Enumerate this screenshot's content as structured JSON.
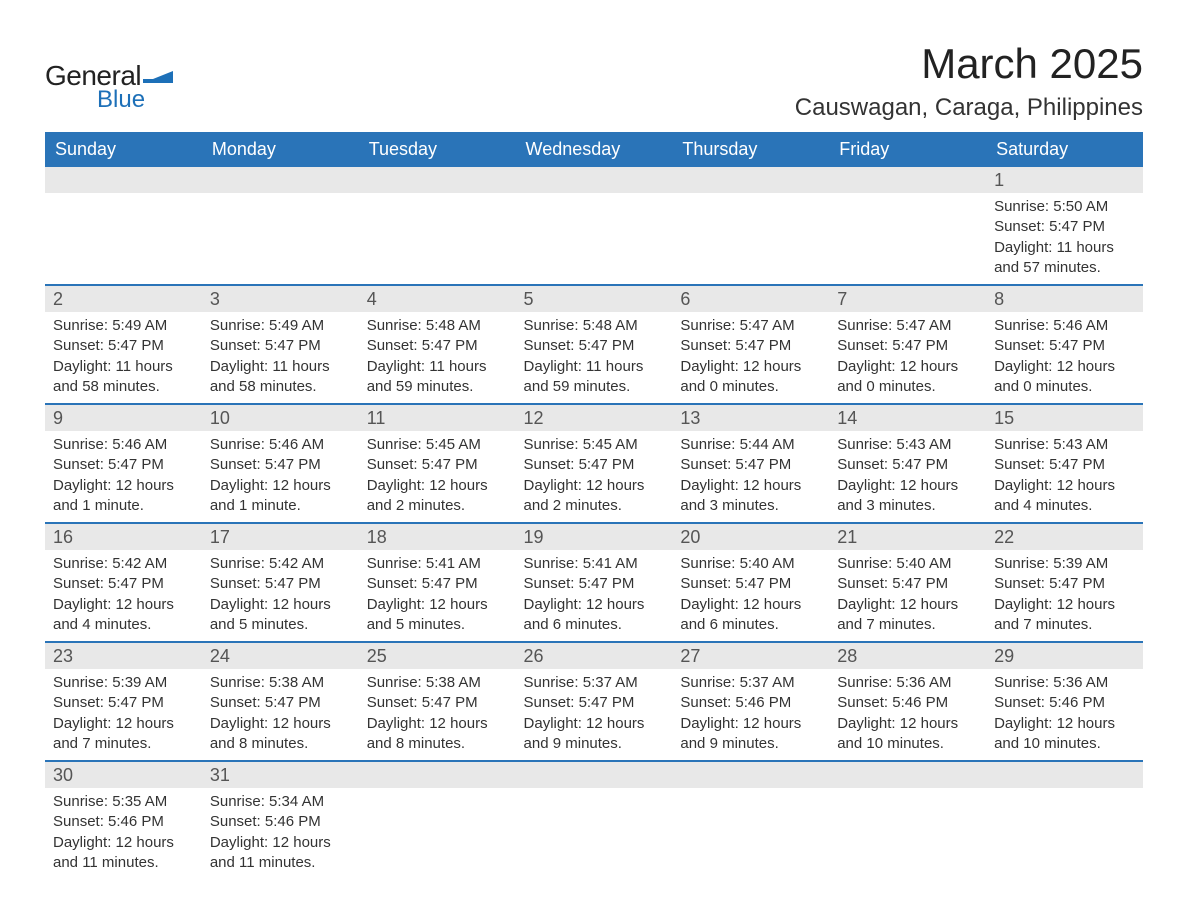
{
  "brand": {
    "name1": "General",
    "name2": "Blue",
    "accent": "#1d70b8"
  },
  "title": "March 2025",
  "location": "Causwagan, Caraga, Philippines",
  "colors": {
    "header_bg": "#2a74b8",
    "header_text": "#ffffff",
    "daynum_bg": "#e8e8e8",
    "row_divider": "#2a74b8",
    "body_text": "#333333"
  },
  "fonts": {
    "title_size_pt": 32,
    "location_size_pt": 18,
    "weekday_size_pt": 14,
    "daynum_size_pt": 14,
    "body_size_pt": 11
  },
  "weekdays": [
    "Sunday",
    "Monday",
    "Tuesday",
    "Wednesday",
    "Thursday",
    "Friday",
    "Saturday"
  ],
  "weeks": [
    [
      null,
      null,
      null,
      null,
      null,
      null,
      {
        "n": "1",
        "sunrise": "Sunrise: 5:50 AM",
        "sunset": "Sunset: 5:47 PM",
        "daylight": "Daylight: 11 hours and 57 minutes."
      }
    ],
    [
      {
        "n": "2",
        "sunrise": "Sunrise: 5:49 AM",
        "sunset": "Sunset: 5:47 PM",
        "daylight": "Daylight: 11 hours and 58 minutes."
      },
      {
        "n": "3",
        "sunrise": "Sunrise: 5:49 AM",
        "sunset": "Sunset: 5:47 PM",
        "daylight": "Daylight: 11 hours and 58 minutes."
      },
      {
        "n": "4",
        "sunrise": "Sunrise: 5:48 AM",
        "sunset": "Sunset: 5:47 PM",
        "daylight": "Daylight: 11 hours and 59 minutes."
      },
      {
        "n": "5",
        "sunrise": "Sunrise: 5:48 AM",
        "sunset": "Sunset: 5:47 PM",
        "daylight": "Daylight: 11 hours and 59 minutes."
      },
      {
        "n": "6",
        "sunrise": "Sunrise: 5:47 AM",
        "sunset": "Sunset: 5:47 PM",
        "daylight": "Daylight: 12 hours and 0 minutes."
      },
      {
        "n": "7",
        "sunrise": "Sunrise: 5:47 AM",
        "sunset": "Sunset: 5:47 PM",
        "daylight": "Daylight: 12 hours and 0 minutes."
      },
      {
        "n": "8",
        "sunrise": "Sunrise: 5:46 AM",
        "sunset": "Sunset: 5:47 PM",
        "daylight": "Daylight: 12 hours and 0 minutes."
      }
    ],
    [
      {
        "n": "9",
        "sunrise": "Sunrise: 5:46 AM",
        "sunset": "Sunset: 5:47 PM",
        "daylight": "Daylight: 12 hours and 1 minute."
      },
      {
        "n": "10",
        "sunrise": "Sunrise: 5:46 AM",
        "sunset": "Sunset: 5:47 PM",
        "daylight": "Daylight: 12 hours and 1 minute."
      },
      {
        "n": "11",
        "sunrise": "Sunrise: 5:45 AM",
        "sunset": "Sunset: 5:47 PM",
        "daylight": "Daylight: 12 hours and 2 minutes."
      },
      {
        "n": "12",
        "sunrise": "Sunrise: 5:45 AM",
        "sunset": "Sunset: 5:47 PM",
        "daylight": "Daylight: 12 hours and 2 minutes."
      },
      {
        "n": "13",
        "sunrise": "Sunrise: 5:44 AM",
        "sunset": "Sunset: 5:47 PM",
        "daylight": "Daylight: 12 hours and 3 minutes."
      },
      {
        "n": "14",
        "sunrise": "Sunrise: 5:43 AM",
        "sunset": "Sunset: 5:47 PM",
        "daylight": "Daylight: 12 hours and 3 minutes."
      },
      {
        "n": "15",
        "sunrise": "Sunrise: 5:43 AM",
        "sunset": "Sunset: 5:47 PM",
        "daylight": "Daylight: 12 hours and 4 minutes."
      }
    ],
    [
      {
        "n": "16",
        "sunrise": "Sunrise: 5:42 AM",
        "sunset": "Sunset: 5:47 PM",
        "daylight": "Daylight: 12 hours and 4 minutes."
      },
      {
        "n": "17",
        "sunrise": "Sunrise: 5:42 AM",
        "sunset": "Sunset: 5:47 PM",
        "daylight": "Daylight: 12 hours and 5 minutes."
      },
      {
        "n": "18",
        "sunrise": "Sunrise: 5:41 AM",
        "sunset": "Sunset: 5:47 PM",
        "daylight": "Daylight: 12 hours and 5 minutes."
      },
      {
        "n": "19",
        "sunrise": "Sunrise: 5:41 AM",
        "sunset": "Sunset: 5:47 PM",
        "daylight": "Daylight: 12 hours and 6 minutes."
      },
      {
        "n": "20",
        "sunrise": "Sunrise: 5:40 AM",
        "sunset": "Sunset: 5:47 PM",
        "daylight": "Daylight: 12 hours and 6 minutes."
      },
      {
        "n": "21",
        "sunrise": "Sunrise: 5:40 AM",
        "sunset": "Sunset: 5:47 PM",
        "daylight": "Daylight: 12 hours and 7 minutes."
      },
      {
        "n": "22",
        "sunrise": "Sunrise: 5:39 AM",
        "sunset": "Sunset: 5:47 PM",
        "daylight": "Daylight: 12 hours and 7 minutes."
      }
    ],
    [
      {
        "n": "23",
        "sunrise": "Sunrise: 5:39 AM",
        "sunset": "Sunset: 5:47 PM",
        "daylight": "Daylight: 12 hours and 7 minutes."
      },
      {
        "n": "24",
        "sunrise": "Sunrise: 5:38 AM",
        "sunset": "Sunset: 5:47 PM",
        "daylight": "Daylight: 12 hours and 8 minutes."
      },
      {
        "n": "25",
        "sunrise": "Sunrise: 5:38 AM",
        "sunset": "Sunset: 5:47 PM",
        "daylight": "Daylight: 12 hours and 8 minutes."
      },
      {
        "n": "26",
        "sunrise": "Sunrise: 5:37 AM",
        "sunset": "Sunset: 5:47 PM",
        "daylight": "Daylight: 12 hours and 9 minutes."
      },
      {
        "n": "27",
        "sunrise": "Sunrise: 5:37 AM",
        "sunset": "Sunset: 5:46 PM",
        "daylight": "Daylight: 12 hours and 9 minutes."
      },
      {
        "n": "28",
        "sunrise": "Sunrise: 5:36 AM",
        "sunset": "Sunset: 5:46 PM",
        "daylight": "Daylight: 12 hours and 10 minutes."
      },
      {
        "n": "29",
        "sunrise": "Sunrise: 5:36 AM",
        "sunset": "Sunset: 5:46 PM",
        "daylight": "Daylight: 12 hours and 10 minutes."
      }
    ],
    [
      {
        "n": "30",
        "sunrise": "Sunrise: 5:35 AM",
        "sunset": "Sunset: 5:46 PM",
        "daylight": "Daylight: 12 hours and 11 minutes."
      },
      {
        "n": "31",
        "sunrise": "Sunrise: 5:34 AM",
        "sunset": "Sunset: 5:46 PM",
        "daylight": "Daylight: 12 hours and 11 minutes."
      },
      null,
      null,
      null,
      null,
      null
    ]
  ]
}
